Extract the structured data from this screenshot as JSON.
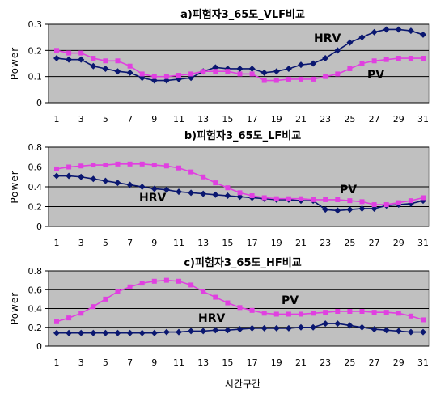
{
  "figure": {
    "xlabel": "시간구간",
    "colors": {
      "plot_bg": "#c0c0c0",
      "hrv": "#0a1770",
      "pv": "#e040e0",
      "grid": "#000000"
    }
  },
  "chart_data": [
    {
      "type": "line",
      "title": "a)피험자3_65도_VLF비교",
      "ylabel": "Power",
      "ylim": [
        0,
        0.3
      ],
      "yticks": [
        "0",
        "0.1",
        "0.2",
        "0.3"
      ],
      "xticks": [
        "1",
        "3",
        "5",
        "7",
        "9",
        "11",
        "13",
        "15",
        "17",
        "19",
        "21",
        "23",
        "25",
        "27",
        "29",
        "31"
      ],
      "x": [
        1,
        2,
        3,
        4,
        5,
        6,
        7,
        8,
        9,
        10,
        11,
        12,
        13,
        14,
        15,
        16,
        17,
        18,
        19,
        20,
        21,
        22,
        23,
        24,
        25,
        26,
        27,
        28,
        29,
        30,
        31
      ],
      "annotations": [
        "HRV",
        "PV"
      ],
      "series": [
        {
          "name": "HRV",
          "marker": "diamond",
          "values": [
            0.17,
            0.165,
            0.165,
            0.14,
            0.13,
            0.12,
            0.115,
            0.095,
            0.085,
            0.085,
            0.09,
            0.095,
            0.12,
            0.135,
            0.13,
            0.13,
            0.13,
            0.115,
            0.12,
            0.13,
            0.145,
            0.15,
            0.17,
            0.2,
            0.23,
            0.25,
            0.27,
            0.28,
            0.28,
            0.275,
            0.26
          ]
        },
        {
          "name": "PV",
          "marker": "square",
          "values": [
            0.2,
            0.19,
            0.19,
            0.17,
            0.16,
            0.16,
            0.14,
            0.11,
            0.1,
            0.1,
            0.105,
            0.11,
            0.12,
            0.12,
            0.12,
            0.11,
            0.11,
            0.085,
            0.085,
            0.09,
            0.09,
            0.09,
            0.1,
            0.11,
            0.13,
            0.15,
            0.16,
            0.165,
            0.17,
            0.17,
            0.17
          ]
        }
      ]
    },
    {
      "type": "line",
      "title": "b)피험자3_65도_LF비교",
      "ylabel": "Power",
      "ylim": [
        0,
        0.8
      ],
      "yticks": [
        "0",
        "0.2",
        "0.4",
        "0.6",
        "0.8"
      ],
      "xticks": [
        "1",
        "3",
        "5",
        "7",
        "9",
        "11",
        "13",
        "15",
        "17",
        "19",
        "21",
        "23",
        "25",
        "27",
        "29",
        "31"
      ],
      "x": [
        1,
        2,
        3,
        4,
        5,
        6,
        7,
        8,
        9,
        10,
        11,
        12,
        13,
        14,
        15,
        16,
        17,
        18,
        19,
        20,
        21,
        22,
        23,
        24,
        25,
        26,
        27,
        28,
        29,
        30,
        31
      ],
      "annotations": [
        "HRV",
        "PV"
      ],
      "series": [
        {
          "name": "HRV",
          "marker": "diamond",
          "values": [
            0.51,
            0.51,
            0.5,
            0.48,
            0.46,
            0.44,
            0.42,
            0.4,
            0.38,
            0.37,
            0.35,
            0.34,
            0.33,
            0.32,
            0.31,
            0.3,
            0.29,
            0.28,
            0.27,
            0.27,
            0.26,
            0.26,
            0.17,
            0.16,
            0.17,
            0.18,
            0.18,
            0.21,
            0.22,
            0.23,
            0.26
          ]
        },
        {
          "name": "PV",
          "marker": "square",
          "values": [
            0.58,
            0.6,
            0.61,
            0.62,
            0.62,
            0.63,
            0.63,
            0.63,
            0.62,
            0.61,
            0.59,
            0.55,
            0.5,
            0.44,
            0.39,
            0.34,
            0.31,
            0.29,
            0.28,
            0.28,
            0.28,
            0.27,
            0.27,
            0.27,
            0.26,
            0.25,
            0.22,
            0.22,
            0.24,
            0.26,
            0.29
          ]
        }
      ]
    },
    {
      "type": "line",
      "title": "c)피험자3_65도_HF비교",
      "ylabel": "Power",
      "ylim": [
        0,
        0.8
      ],
      "yticks": [
        "0",
        "0.2",
        "0.4",
        "0.6",
        "0.8"
      ],
      "xticks": [
        "1",
        "3",
        "5",
        "7",
        "9",
        "11",
        "13",
        "15",
        "17",
        "19",
        "21",
        "23",
        "25",
        "27",
        "29",
        "31"
      ],
      "x": [
        1,
        2,
        3,
        4,
        5,
        6,
        7,
        8,
        9,
        10,
        11,
        12,
        13,
        14,
        15,
        16,
        17,
        18,
        19,
        20,
        21,
        22,
        23,
        24,
        25,
        26,
        27,
        28,
        29,
        30,
        31
      ],
      "annotations": [
        "HRV",
        "PV"
      ],
      "series": [
        {
          "name": "HRV",
          "marker": "diamond",
          "values": [
            0.14,
            0.14,
            0.14,
            0.14,
            0.14,
            0.14,
            0.14,
            0.14,
            0.14,
            0.15,
            0.15,
            0.16,
            0.16,
            0.17,
            0.17,
            0.18,
            0.19,
            0.19,
            0.19,
            0.19,
            0.2,
            0.2,
            0.24,
            0.24,
            0.22,
            0.2,
            0.18,
            0.17,
            0.16,
            0.15,
            0.15
          ]
        },
        {
          "name": "PV",
          "marker": "square",
          "values": [
            0.26,
            0.3,
            0.35,
            0.42,
            0.5,
            0.58,
            0.63,
            0.67,
            0.69,
            0.7,
            0.69,
            0.65,
            0.58,
            0.52,
            0.46,
            0.41,
            0.38,
            0.35,
            0.34,
            0.34,
            0.34,
            0.35,
            0.36,
            0.37,
            0.37,
            0.37,
            0.36,
            0.36,
            0.35,
            0.32,
            0.28
          ]
        }
      ]
    }
  ]
}
